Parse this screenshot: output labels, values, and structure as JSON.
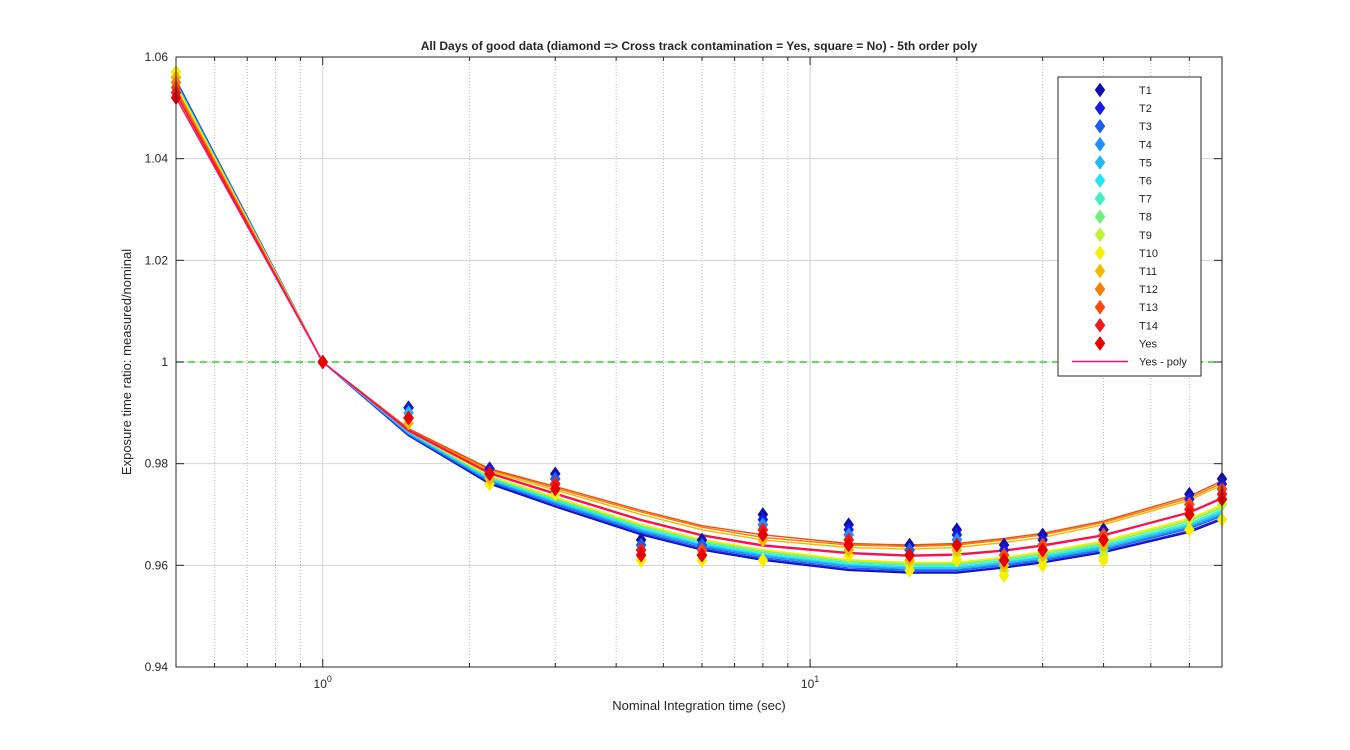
{
  "chart_data": {
    "type": "scatter",
    "title": "All Days of good data  (diamond => Cross track contamination = Yes, square = No) - 5th order poly",
    "xlabel": "Nominal Integration time (sec)",
    "ylabel": "Exposure time ratio: measured/nominal",
    "xscale": "log",
    "xlim": [
      0.5,
      70
    ],
    "ylim": [
      0.94,
      1.06
    ],
    "yticks": [
      "0.94",
      "0.96",
      "0.98",
      "1",
      "1.02",
      "1.04",
      "1.06"
    ],
    "xticks": [
      {
        "base": "10",
        "exp": "0",
        "value": 1
      },
      {
        "base": "10",
        "exp": "1",
        "value": 10
      }
    ],
    "grid": true,
    "legend_position": "top-right",
    "reference_line": {
      "y": 1,
      "color": "#00cc00",
      "style": "dashed"
    },
    "x": [
      0.5,
      1,
      1.5,
      2.2,
      3,
      4.5,
      6,
      8,
      12,
      16,
      20,
      25,
      30,
      40,
      60,
      70
    ],
    "poly_x": [
      0.5,
      1,
      1.5,
      2.2,
      3,
      4.5,
      6,
      8,
      12,
      16,
      20,
      25,
      30,
      40,
      60,
      70
    ],
    "series": [
      {
        "name": "T1",
        "color": "#1010b0",
        "points": [
          1.056,
          1,
          0.991,
          0.979,
          0.978,
          0.965,
          0.965,
          0.97,
          0.968,
          0.964,
          0.967,
          0.964,
          0.966,
          0.967,
          0.974,
          0.977
        ],
        "poly": [
          1.0555,
          1,
          0.9855,
          0.976,
          0.9715,
          0.966,
          0.963,
          0.961,
          0.959,
          0.9585,
          0.9585,
          0.9595,
          0.9605,
          0.9625,
          0.9665,
          0.969
        ]
      },
      {
        "name": "T2",
        "color": "#1a1ae0",
        "points": [
          1.056,
          1,
          0.991,
          0.979,
          0.977,
          0.964,
          0.964,
          0.969,
          0.967,
          0.963,
          0.966,
          0.963,
          0.965,
          0.966,
          0.973,
          0.976
        ],
        "poly": [
          1.0555,
          1,
          0.9855,
          0.9762,
          0.9717,
          0.9662,
          0.9632,
          0.9612,
          0.9592,
          0.9587,
          0.9587,
          0.9597,
          0.9607,
          0.9627,
          0.9668,
          0.9693
        ]
      },
      {
        "name": "T3",
        "color": "#1f5fe8",
        "points": [
          1.056,
          1,
          0.99,
          0.978,
          0.977,
          0.964,
          0.964,
          0.968,
          0.966,
          0.963,
          0.965,
          0.962,
          0.964,
          0.966,
          0.972,
          0.975
        ],
        "poly": [
          1.0553,
          1,
          0.9857,
          0.9764,
          0.972,
          0.9665,
          0.9635,
          0.9615,
          0.9595,
          0.959,
          0.959,
          0.96,
          0.961,
          0.963,
          0.9672,
          0.9697
        ]
      },
      {
        "name": "T4",
        "color": "#1e90ff",
        "points": [
          1.056,
          1,
          0.99,
          0.978,
          0.976,
          0.963,
          0.963,
          0.968,
          0.966,
          0.962,
          0.965,
          0.962,
          0.964,
          0.965,
          0.972,
          0.975
        ],
        "poly": [
          1.0551,
          1,
          0.9859,
          0.9766,
          0.9722,
          0.9668,
          0.9638,
          0.9618,
          0.9598,
          0.9592,
          0.9592,
          0.9602,
          0.9612,
          0.9632,
          0.9675,
          0.97
        ]
      },
      {
        "name": "T5",
        "color": "#22b8f5",
        "points": [
          1.056,
          1,
          0.99,
          0.978,
          0.976,
          0.963,
          0.963,
          0.967,
          0.965,
          0.962,
          0.964,
          0.961,
          0.963,
          0.965,
          0.971,
          0.974
        ],
        "poly": [
          1.0549,
          1,
          0.986,
          0.9768,
          0.9725,
          0.967,
          0.964,
          0.962,
          0.96,
          0.9595,
          0.9595,
          0.9605,
          0.9615,
          0.9635,
          0.9678,
          0.9703
        ]
      },
      {
        "name": "T6",
        "color": "#20e6f0",
        "points": [
          1.056,
          1,
          0.989,
          0.978,
          0.976,
          0.963,
          0.962,
          0.967,
          0.965,
          0.962,
          0.964,
          0.961,
          0.963,
          0.964,
          0.971,
          0.974
        ],
        "poly": [
          1.0547,
          1,
          0.9862,
          0.977,
          0.9727,
          0.9672,
          0.9642,
          0.9622,
          0.9602,
          0.9597,
          0.9597,
          0.9607,
          0.9617,
          0.9638,
          0.968,
          0.9706
        ]
      },
      {
        "name": "T7",
        "color": "#3ef0c0",
        "points": [
          1.056,
          1,
          0.989,
          0.977,
          0.975,
          0.962,
          0.962,
          0.966,
          0.964,
          0.961,
          0.963,
          0.96,
          0.962,
          0.964,
          0.97,
          0.973
        ],
        "poly": [
          1.0545,
          1,
          0.9863,
          0.9772,
          0.9729,
          0.9675,
          0.9645,
          0.9625,
          0.9605,
          0.96,
          0.96,
          0.961,
          0.962,
          0.964,
          0.9683,
          0.9709
        ]
      },
      {
        "name": "T8",
        "color": "#70f07a",
        "points": [
          1.056,
          1,
          0.989,
          0.977,
          0.975,
          0.962,
          0.962,
          0.966,
          0.964,
          0.961,
          0.963,
          0.96,
          0.962,
          0.963,
          0.97,
          0.973
        ],
        "poly": [
          1.0543,
          1,
          0.9864,
          0.9774,
          0.9731,
          0.9678,
          0.9648,
          0.9628,
          0.9608,
          0.9603,
          0.9603,
          0.9613,
          0.9623,
          0.9643,
          0.9687,
          0.9713
        ]
      },
      {
        "name": "T9",
        "color": "#b8f535",
        "points": [
          1.057,
          1,
          0.989,
          0.977,
          0.975,
          0.961,
          0.961,
          0.965,
          0.963,
          0.96,
          0.962,
          0.959,
          0.961,
          0.962,
          0.969,
          0.972
        ],
        "poly": [
          1.0545,
          1,
          0.9864,
          0.9775,
          0.9733,
          0.968,
          0.965,
          0.963,
          0.961,
          0.9605,
          0.9605,
          0.9615,
          0.9625,
          0.9646,
          0.969,
          0.9716
        ]
      },
      {
        "name": "T10",
        "color": "#f5f000",
        "points": [
          1.057,
          1,
          0.988,
          0.976,
          0.974,
          0.961,
          0.961,
          0.961,
          0.962,
          0.959,
          0.961,
          0.958,
          0.96,
          0.961,
          0.967,
          0.969
        ],
        "poly": [
          1.0545,
          1,
          0.9865,
          0.9776,
          0.9734,
          0.9681,
          0.9651,
          0.9631,
          0.9611,
          0.9606,
          0.9606,
          0.9616,
          0.9626,
          0.9648,
          0.9692,
          0.9719
        ]
      },
      {
        "name": "T11",
        "color": "#f5b800",
        "points": [
          1.056,
          1,
          0.988,
          0.977,
          0.975,
          0.962,
          0.962,
          0.965,
          0.963,
          0.961,
          0.963,
          0.96,
          0.962,
          0.964,
          0.97,
          0.973
        ],
        "poly": [
          1.054,
          1,
          0.9866,
          0.9785,
          0.9748,
          0.97,
          0.967,
          0.965,
          0.9635,
          0.9632,
          0.9635,
          0.9645,
          0.9655,
          0.968,
          0.9728,
          0.9758
        ]
      },
      {
        "name": "T12",
        "color": "#f57f00",
        "points": [
          1.055,
          1,
          0.989,
          0.978,
          0.976,
          0.963,
          0.962,
          0.966,
          0.964,
          0.962,
          0.964,
          0.961,
          0.963,
          0.965,
          0.971,
          0.974
        ],
        "poly": [
          1.0537,
          1,
          0.9868,
          0.9788,
          0.9752,
          0.9705,
          0.9675,
          0.9655,
          0.964,
          0.9637,
          0.964,
          0.965,
          0.966,
          0.9684,
          0.9732,
          0.9762
        ]
      },
      {
        "name": "T13",
        "color": "#f54a10",
        "points": [
          1.054,
          1,
          0.989,
          0.978,
          0.976,
          0.963,
          0.963,
          0.967,
          0.965,
          0.962,
          0.964,
          0.962,
          0.964,
          0.966,
          0.972,
          0.975
        ],
        "poly": [
          1.0533,
          1,
          0.9869,
          0.979,
          0.9755,
          0.9708,
          0.9678,
          0.966,
          0.9643,
          0.964,
          0.9643,
          0.9653,
          0.9663,
          0.9687,
          0.9736,
          0.9766
        ]
      },
      {
        "name": "T14",
        "color": "#f01818",
        "points": [
          1.053,
          1,
          0.989,
          0.978,
          0.976,
          0.963,
          0.962,
          0.967,
          0.965,
          0.962,
          0.964,
          0.961,
          0.963,
          0.965,
          0.971,
          0.974
        ],
        "poly": [
          1.0527,
          1,
          0.9866,
          0.9782,
          0.9742,
          0.969,
          0.966,
          0.964,
          0.9625,
          0.962,
          0.9622,
          0.963,
          0.964,
          0.966,
          0.9705,
          0.9733
        ]
      },
      {
        "name": "Yes",
        "color": "#e60000",
        "points": [
          1.052,
          1,
          0.989,
          0.978,
          0.975,
          0.962,
          0.962,
          0.966,
          0.964,
          0.962,
          0.964,
          0.961,
          0.963,
          0.965,
          0.97,
          0.973
        ],
        "poly": null
      }
    ],
    "yes_poly": {
      "name": "Yes - poly",
      "color": "#ff0a78",
      "values": [
        1.052,
        1,
        0.9864,
        0.978,
        0.974,
        0.9688,
        0.9658,
        0.9638,
        0.9623,
        0.9618,
        0.962,
        0.9628,
        0.9638,
        0.9658,
        0.9703,
        0.9731
      ]
    }
  }
}
